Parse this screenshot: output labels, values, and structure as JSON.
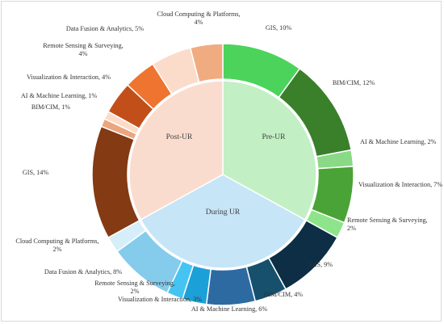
{
  "chart_data": {
    "type": "pie",
    "subtype": "sunburst",
    "inner_ring": [
      {
        "name": "Pre-UR",
        "color": "#c3efc4"
      },
      {
        "name": "During UR",
        "color": "#c6e5f7"
      },
      {
        "name": "Post-UR",
        "color": "#fadcce"
      }
    ],
    "outer_ring": [
      {
        "group": "Pre-UR",
        "label_lines": [
          "GIS, 10%"
        ],
        "value": 10,
        "color": "#4cd35c"
      },
      {
        "group": "Pre-UR",
        "label_lines": [
          "BIM/CIM, 12%"
        ],
        "value": 12,
        "color": "#3a7f2a"
      },
      {
        "group": "Pre-UR",
        "label_lines": [
          "AI & Machine Learning, 2%"
        ],
        "value": 2,
        "color": "#8ad986"
      },
      {
        "group": "Pre-UR",
        "label_lines": [
          "Visualization & Interaction, 7%"
        ],
        "value": 7,
        "color": "#4aa336"
      },
      {
        "group": "Pre-UR",
        "label_lines": [
          "Remote Sensing & Surveying,",
          "2%"
        ],
        "value": 2,
        "color": "#8ee48a"
      },
      {
        "group": "During UR",
        "label_lines": [
          "GIS, 9%"
        ],
        "value": 9,
        "color": "#0d2e45"
      },
      {
        "group": "During UR",
        "label_lines": [
          "BIM/CIM, 4%"
        ],
        "value": 4,
        "color": "#16506c"
      },
      {
        "group": "During UR",
        "label_lines": [
          "AI & Machine Learning, 6%"
        ],
        "value": 6,
        "color": "#2e6aa2"
      },
      {
        "group": "During UR",
        "label_lines": [
          "Visualization & Interaction, 3%"
        ],
        "value": 3,
        "color": "#1ca0d8"
      },
      {
        "group": "During UR",
        "label_lines": [
          "Remote Sensing & Surveying,",
          "2%"
        ],
        "value": 2,
        "color": "#45c4f3"
      },
      {
        "group": "During UR",
        "label_lines": [
          "Data Fusion & Analytics, 8%"
        ],
        "value": 8,
        "color": "#85cbec"
      },
      {
        "group": "During UR",
        "label_lines": [
          "Cloud Computing & Platforms,",
          "2%"
        ],
        "value": 2,
        "color": "#d6eefa"
      },
      {
        "group": "Post-UR",
        "label_lines": [
          "GIS, 14%"
        ],
        "value": 14,
        "color": "#843a12"
      },
      {
        "group": "Post-UR",
        "label_lines": [
          "BIM/CIM, 1%"
        ],
        "value": 1,
        "color": "#eba67f"
      },
      {
        "group": "Post-UR",
        "label_lines": [
          "AI & Machine Learning, 1%"
        ],
        "value": 1,
        "color": "#fcdcc8"
      },
      {
        "group": "Post-UR",
        "label_lines": [
          "Visualization & Interaction, 4%"
        ],
        "value": 4,
        "color": "#c24f1a"
      },
      {
        "group": "Post-UR",
        "label_lines": [
          "Remote Sensing & Surveying,",
          "4%"
        ],
        "value": 4,
        "color": "#ee7430"
      },
      {
        "group": "Post-UR",
        "label_lines": [
          "Data Fusion & Analytics, 5%"
        ],
        "value": 5,
        "color": "#fbdccb"
      },
      {
        "group": "Post-UR",
        "label_lines": [
          "Cloud Computing & Platforms,",
          "4%"
        ],
        "value": 4,
        "color": "#f1ab80"
      }
    ],
    "start_angle_deg": 0,
    "direction": "clockwise",
    "legend": "none"
  }
}
